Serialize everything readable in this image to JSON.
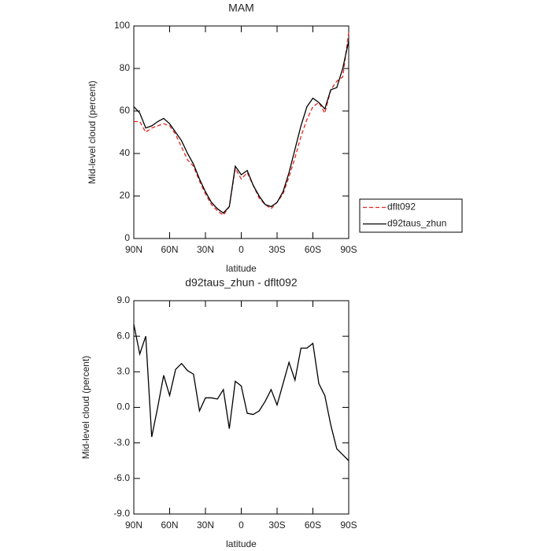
{
  "chart_data": [
    {
      "type": "line",
      "title": "MAM",
      "xlabel": "latitude",
      "ylabel": "Mid-level cloud (percent)",
      "x": [
        90,
        85,
        80,
        75,
        70,
        65,
        60,
        55,
        50,
        45,
        40,
        35,
        30,
        25,
        20,
        15,
        10,
        5,
        0,
        -5,
        -10,
        -15,
        -20,
        -25,
        -30,
        -35,
        -40,
        -45,
        -50,
        -55,
        -60,
        -65,
        -70,
        -75,
        -80,
        -85,
        -90
      ],
      "xlim": [
        90,
        -90
      ],
      "xticks": [
        {
          "value": 90,
          "label": "90N"
        },
        {
          "value": 60,
          "label": "60N"
        },
        {
          "value": 30,
          "label": "30N"
        },
        0,
        {
          "value": -30,
          "label": "30S"
        },
        {
          "value": -60,
          "label": "60S"
        },
        {
          "value": -90,
          "label": "90S"
        }
      ],
      "ylim": [
        0,
        100
      ],
      "yticks": [
        0,
        20,
        40,
        60,
        80,
        100
      ],
      "legend": "right",
      "series": [
        {
          "name": "dflt092",
          "color": "#e8251f",
          "linestyle": "dashed",
          "values": [
            55,
            55,
            50,
            52,
            53,
            54,
            53,
            49,
            43,
            37,
            34,
            27,
            21,
            16,
            13,
            11,
            15,
            33,
            28,
            31,
            25,
            19,
            16,
            14,
            17,
            21,
            29,
            38,
            48,
            56,
            62,
            64,
            59,
            70,
            74,
            76,
            97
          ]
        },
        {
          "name": "d92taus_zhun",
          "color": "#000000",
          "linestyle": "solid",
          "values": [
            62,
            59,
            52,
            53,
            55,
            56.5,
            54,
            50,
            46,
            40,
            35,
            28,
            22,
            17,
            14,
            12,
            15,
            34,
            30,
            32,
            25,
            20,
            16,
            15,
            17,
            22,
            31,
            42,
            53,
            62,
            66,
            64,
            61,
            70,
            71,
            80,
            93
          ]
        }
      ]
    },
    {
      "type": "line",
      "title": "d92taus_zhun - dflt092",
      "xlabel": "latitude",
      "ylabel": "Mid-level cloud (percent)",
      "x": [
        90,
        85,
        80,
        75,
        70,
        65,
        60,
        55,
        50,
        45,
        40,
        35,
        30,
        25,
        20,
        15,
        10,
        5,
        0,
        -5,
        -10,
        -15,
        -20,
        -25,
        -30,
        -35,
        -40,
        -45,
        -50,
        -55,
        -60,
        -65,
        -70,
        -75,
        -80,
        -85,
        -90
      ],
      "xlim": [
        90,
        -90
      ],
      "xticks": [
        {
          "value": 90,
          "label": "90N"
        },
        {
          "value": 60,
          "label": "60N"
        },
        {
          "value": 30,
          "label": "30N"
        },
        0,
        {
          "value": -30,
          "label": "30S"
        },
        {
          "value": -60,
          "label": "60S"
        },
        {
          "value": -90,
          "label": "90S"
        }
      ],
      "ylim": [
        -9,
        9
      ],
      "yticks": [
        {
          "value": -9,
          "label": "-9.0"
        },
        {
          "value": -6,
          "label": "-6.0"
        },
        {
          "value": -3,
          "label": "-3.0"
        },
        {
          "value": 0,
          "label": "0.0"
        },
        {
          "value": 3,
          "label": "3.0"
        },
        {
          "value": 6,
          "label": "6.0"
        },
        {
          "value": 9,
          "label": "9.0"
        }
      ],
      "color": "#000000",
      "values": [
        7,
        4.5,
        6,
        -2.5,
        0,
        2.7,
        1,
        3.2,
        3.7,
        3.1,
        2.8,
        -0.3,
        0.8,
        0.8,
        0.7,
        1.5,
        -1.8,
        2.2,
        1.8,
        -0.5,
        -0.6,
        -0.3,
        0.5,
        1.5,
        0.2,
        2,
        3.8,
        2.3,
        5,
        5,
        5.4,
        2,
        1,
        -1.5,
        -3.5,
        -4,
        -4.5
      ]
    }
  ]
}
